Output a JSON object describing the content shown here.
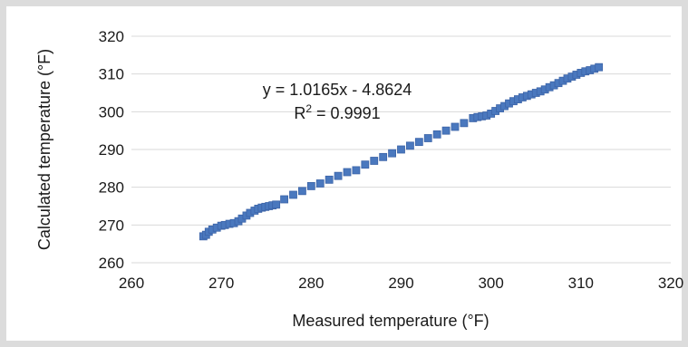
{
  "chart_data": {
    "type": "scatter",
    "xlabel": "Measured temperature (°F)",
    "ylabel": "Calculated temperature (°F)",
    "xlim": [
      260,
      320
    ],
    "ylim": [
      260,
      320
    ],
    "x_ticks": [
      "260",
      "270",
      "280",
      "290",
      "300",
      "310",
      "320"
    ],
    "y_ticks": [
      "260",
      "270",
      "280",
      "290",
      "300",
      "310",
      "320"
    ],
    "grid": "horizontal",
    "legend": "none",
    "marker_color": "#4472c4",
    "annotations": {
      "equation": "y = 1.0165x - 4.8624",
      "r2_prefix": "R",
      "r2_sup": "2",
      "r2_value": " = 0.9991"
    },
    "series": [
      {
        "x": [
          268.0,
          268.3,
          268.6,
          269.0,
          269.5,
          270.0,
          270.4,
          270.9,
          271.4,
          271.9,
          272.3,
          272.8,
          273.2,
          273.7,
          274.1,
          274.5,
          274.9,
          275.3,
          275.7,
          276.1,
          277.0,
          278.0,
          279.0,
          280.0,
          281.0,
          282.0,
          283.0,
          284.0,
          285.0,
          286.0,
          287.0,
          288.0,
          289.0,
          290.0,
          291.0,
          292.0,
          293.0,
          294.0,
          295.0,
          296.0,
          297.0,
          298.0,
          298.5,
          299.0,
          299.5,
          300.0,
          300.5,
          301.0,
          301.5,
          302.0,
          302.5,
          303.0,
          303.5,
          304.0,
          304.5,
          305.0,
          305.5,
          306.0,
          306.5,
          307.0,
          307.5,
          308.0,
          308.5,
          309.0,
          309.5,
          310.0,
          310.5,
          311.0,
          311.5,
          312.0
        ],
        "y": [
          267.0,
          267.4,
          268.2,
          268.8,
          269.3,
          269.8,
          270.0,
          270.3,
          270.5,
          271.0,
          271.7,
          272.5,
          273.2,
          273.8,
          274.3,
          274.6,
          274.8,
          275.0,
          275.2,
          275.4,
          276.8,
          278.0,
          279.0,
          280.3,
          281.0,
          282.0,
          283.0,
          284.0,
          284.5,
          286.0,
          287.0,
          288.0,
          289.0,
          290.0,
          291.0,
          292.0,
          293.0,
          294.0,
          295.0,
          296.0,
          297.0,
          298.3,
          298.6,
          298.8,
          299.0,
          299.5,
          300.2,
          300.9,
          301.5,
          302.2,
          302.8,
          303.3,
          303.8,
          304.2,
          304.6,
          305.0,
          305.4,
          305.9,
          306.5,
          307.0,
          307.6,
          308.2,
          308.8,
          309.3,
          309.8,
          310.3,
          310.7,
          311.0,
          311.4,
          311.8
        ]
      }
    ]
  }
}
